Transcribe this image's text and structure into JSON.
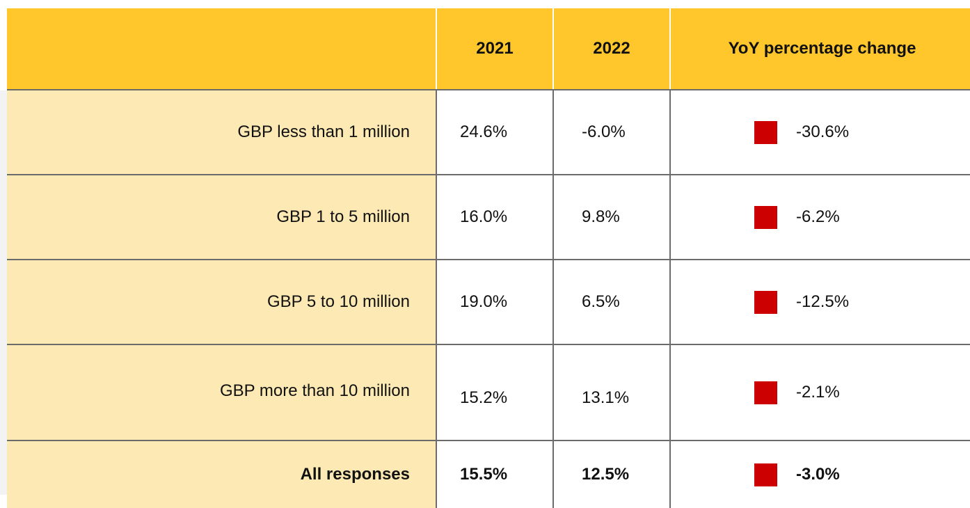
{
  "table": {
    "header": [
      "",
      "2021",
      "2022",
      "YoY percentage change"
    ],
    "rows": [
      [
        "GBP less than 1 million",
        "24.6%",
        "-6.0%",
        "-30.6%"
      ],
      [
        "GBP 1 to 5 million",
        "16.0%",
        "9.8%",
        "-6.2%"
      ],
      [
        "GBP 5 to 10 million",
        "19.0%",
        "6.5%",
        "-12.5%"
      ],
      [
        "GBP more than 10 million",
        "15.2%",
        "13.1%",
        "-2.1%"
      ],
      [
        "All responses",
        "15.5%",
        "12.5%",
        "-3.0%"
      ]
    ]
  }
}
